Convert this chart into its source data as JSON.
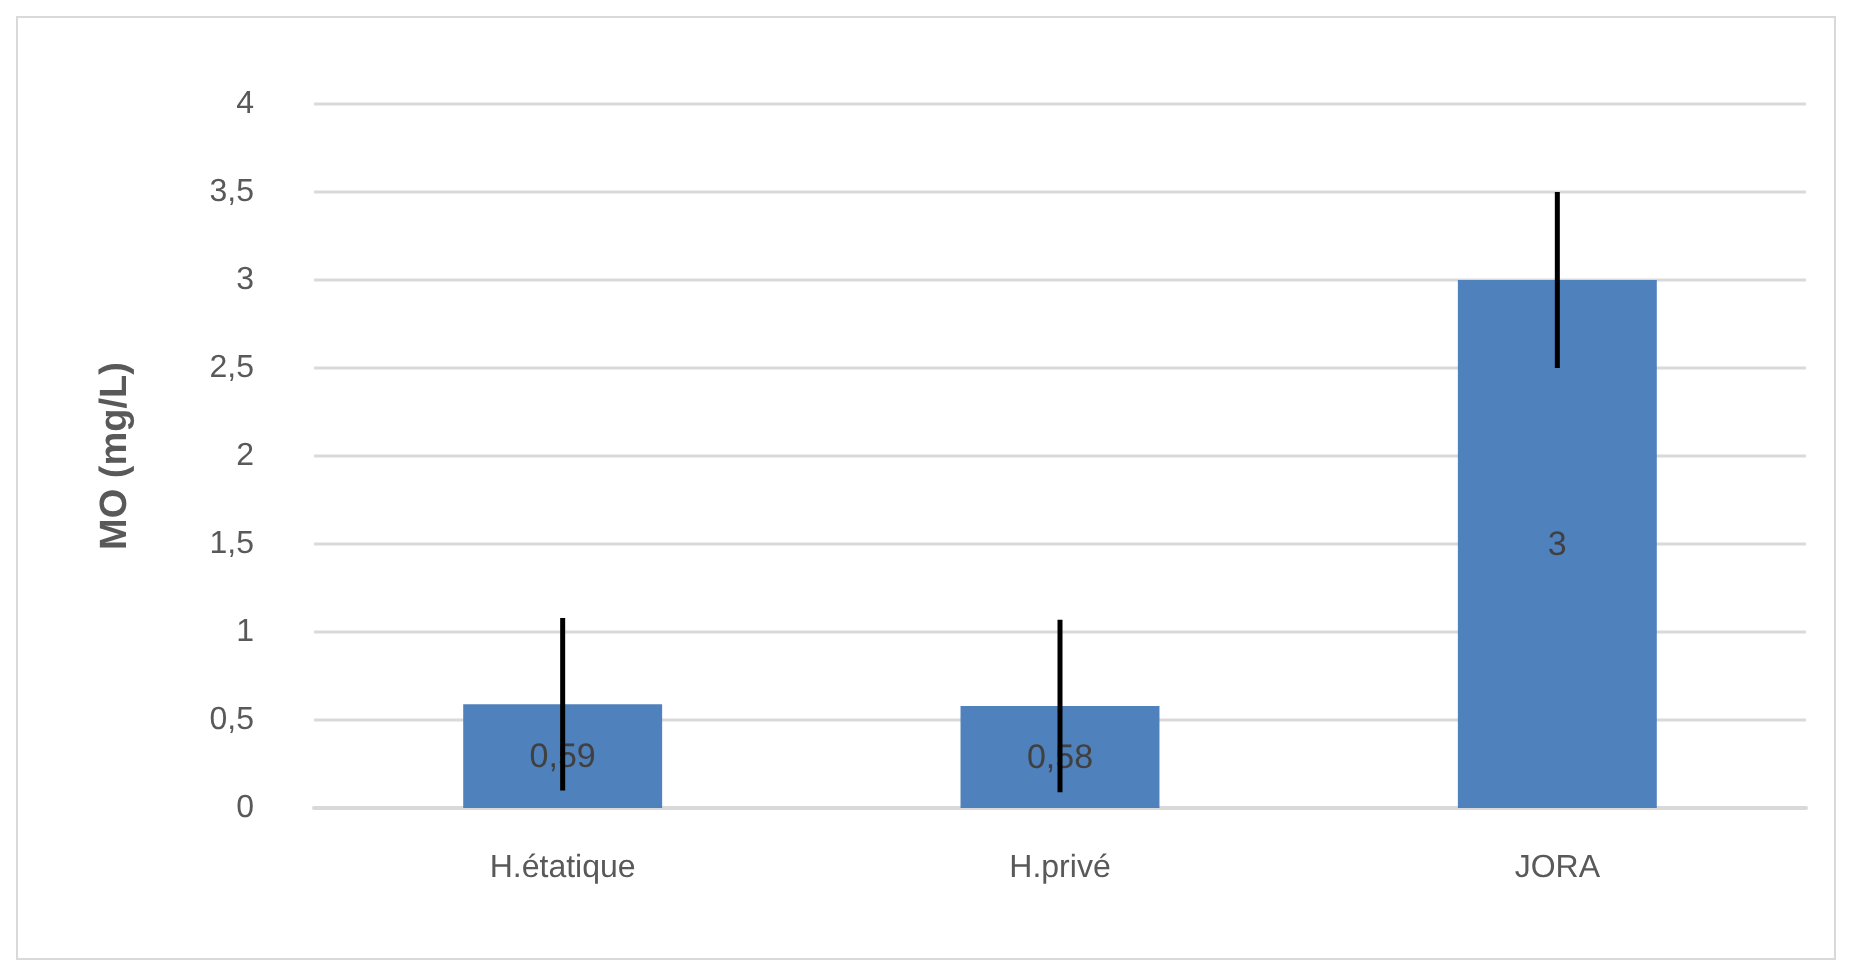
{
  "chart_data": {
    "type": "bar",
    "ylabel": "MO (mg/L)",
    "categories": [
      "H.étatique",
      "H.privé",
      "JORA"
    ],
    "values": [
      0.59,
      0.58,
      3
    ],
    "color": "#4f81bd",
    "errors": [
      0.49,
      0.49,
      0.5
    ],
    "value_labels": [
      "0,59",
      "0,58",
      "3"
    ],
    "ylim": [
      0,
      4
    ],
    "yticks": [
      0,
      {
        "value": 0.5,
        "label": "0,5"
      },
      1,
      {
        "value": 1.5,
        "label": "1,5"
      },
      2,
      {
        "value": 2.5,
        "label": "2,5"
      },
      3,
      {
        "value": 3.5,
        "label": "3,5"
      },
      4
    ],
    "grid": "y"
  }
}
